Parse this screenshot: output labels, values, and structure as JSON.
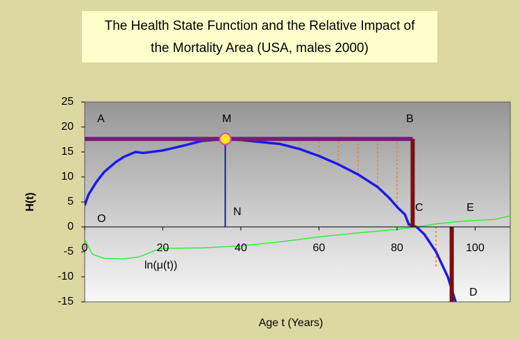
{
  "chart_data": {
    "type": "line",
    "title": [
      "The Health State Function and the Relative Impact of",
      "the  Mortality Area (USA, males 2000)"
    ],
    "ylabel": "H(t)",
    "xlabel": "Age t (Years)",
    "xlim": [
      0,
      109
    ],
    "ylim": [
      -15,
      25
    ],
    "xticks": [
      0,
      20,
      40,
      60,
      80,
      100
    ],
    "yticks": [
      -15,
      -10,
      -5,
      0,
      5,
      10,
      15,
      20,
      25
    ],
    "series": [
      {
        "color": "#1a1aee",
        "x": [
          0,
          1,
          3,
          5,
          8,
          10,
          13,
          15,
          17,
          20,
          25,
          30,
          36,
          40,
          45,
          50,
          55,
          60,
          65,
          70,
          75,
          78,
          80,
          82,
          83,
          85,
          87,
          90,
          93,
          95
        ],
        "values": [
          4.3,
          6.5,
          9,
          11,
          13,
          14,
          15,
          14.8,
          15,
          15.3,
          16.2,
          17.2,
          17.6,
          17.4,
          17,
          16.6,
          15.6,
          14.2,
          12.5,
          10.5,
          8,
          5.8,
          4,
          2.5,
          0.5,
          0,
          -1.5,
          -5,
          -10,
          -15
        ]
      },
      {
        "color": "#33ee33",
        "x": [
          0,
          2,
          5,
          10,
          14,
          18,
          20,
          30,
          40,
          50,
          60,
          70,
          80,
          85,
          90,
          95,
          100,
          105,
          109
        ],
        "values": [
          -2.5,
          -5.5,
          -6.3,
          -6.4,
          -6,
          -4.7,
          -4.3,
          -4.2,
          -3.8,
          -3,
          -2,
          -1.2,
          -0.5,
          0,
          0.6,
          1,
          1.3,
          1.5,
          2.2
        ]
      }
    ],
    "hline": {
      "y": 17.6,
      "x": [
        0,
        84
      ],
      "color": "#7a1a7a"
    },
    "vlines": [
      {
        "x": 36,
        "y": [
          0,
          17.6
        ],
        "color": "#1a1a99",
        "width": 2
      },
      {
        "x": 84,
        "y": [
          0,
          17.6
        ],
        "color": "#7a1010",
        "width": 6
      },
      {
        "x": 94,
        "y": [
          0,
          -15
        ],
        "color": "#7a1010",
        "width": 6
      }
    ],
    "dashed": [
      {
        "x": 50,
        "y": [
          16.6,
          17.6
        ]
      },
      {
        "x": 55,
        "y": [
          15.6,
          17.6
        ]
      },
      {
        "x": 60,
        "y": [
          14.2,
          17.6
        ]
      },
      {
        "x": 65,
        "y": [
          12.5,
          17.6
        ]
      },
      {
        "x": 70,
        "y": [
          10.5,
          17.6
        ]
      },
      {
        "x": 75,
        "y": [
          8,
          17.6
        ]
      },
      {
        "x": 80,
        "y": [
          4,
          17.6
        ]
      },
      {
        "x": 90,
        "y": [
          0,
          -8
        ]
      }
    ],
    "point": {
      "x": 36,
      "y": 17.6,
      "color": "#ffee00"
    },
    "annotations": [
      "A",
      "M",
      "B",
      "N",
      "O",
      "C",
      "E",
      "D",
      "ln(μ(t))"
    ]
  }
}
